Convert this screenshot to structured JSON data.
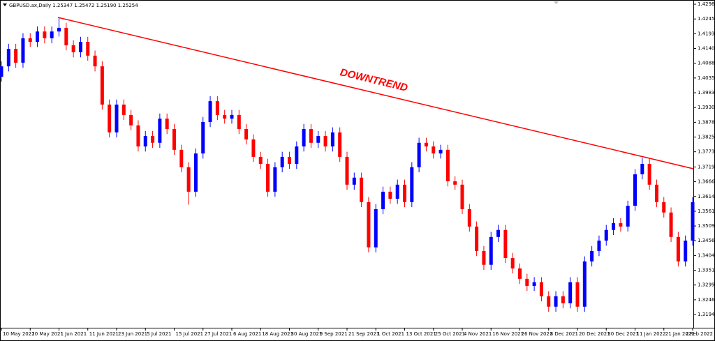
{
  "chart_data": {
    "type": "candlestick",
    "title": "GBPUSD.ax,Daily  1.25347 1.25472 1.25190 1.25254",
    "annotation": "DOWNTREND",
    "up_color": "#0000ff",
    "down_color": "#ff0000",
    "ylim": [
      1.3147,
      1.4313
    ],
    "yticks": [
      {
        "value": 1.4298,
        "label": "1.42980"
      },
      {
        "value": 1.42455,
        "label": "1.42455"
      },
      {
        "value": 1.4193,
        "label": "1.41930"
      },
      {
        "value": 1.41405,
        "label": "1.41405"
      },
      {
        "value": 1.4088,
        "label": "1.40880"
      },
      {
        "value": 1.40355,
        "label": "1.40355"
      },
      {
        "value": 1.3983,
        "label": "1.39830"
      },
      {
        "value": 1.39305,
        "label": "1.39305"
      },
      {
        "value": 1.3878,
        "label": "1.38780"
      },
      {
        "value": 1.38255,
        "label": "1.38255"
      },
      {
        "value": 1.3773,
        "label": "1.37730"
      },
      {
        "value": 1.3719,
        "label": "1.37190"
      },
      {
        "value": 1.36665,
        "label": "1.36665"
      },
      {
        "value": 1.3614,
        "label": "1.36140"
      },
      {
        "value": 1.35615,
        "label": "1.35615"
      },
      {
        "value": 1.3509,
        "label": "1.35090"
      },
      {
        "value": 1.34565,
        "label": "1.34565"
      },
      {
        "value": 1.3404,
        "label": "1.34040"
      },
      {
        "value": 1.33515,
        "label": "1.33515"
      },
      {
        "value": 1.3299,
        "label": "1.32990"
      },
      {
        "value": 1.32465,
        "label": "1.32465"
      },
      {
        "value": 1.3194,
        "label": "1.31940"
      }
    ],
    "xlim": [
      0,
      96
    ],
    "xticks": [
      {
        "value": 0,
        "label": "10 May 2021"
      },
      {
        "value": 4,
        "label": "20 May 2021"
      },
      {
        "value": 8,
        "label": "1 Jun 2021"
      },
      {
        "value": 12,
        "label": "11 Jun 2021"
      },
      {
        "value": 16,
        "label": "23 Jun 2021"
      },
      {
        "value": 20,
        "label": "5 Jul 2021"
      },
      {
        "value": 24,
        "label": "15 Jul 2021"
      },
      {
        "value": 28,
        "label": "27 Jul 2021"
      },
      {
        "value": 32,
        "label": "6 Aug 2021"
      },
      {
        "value": 36,
        "label": "18 Aug 2021"
      },
      {
        "value": 40,
        "label": "30 Aug 2021"
      },
      {
        "value": 44,
        "label": "9 Sep 2021"
      },
      {
        "value": 48,
        "label": "21 Sep 2021"
      },
      {
        "value": 52,
        "label": "1 Oct 2021"
      },
      {
        "value": 56,
        "label": "13 Oct 2021"
      },
      {
        "value": 60,
        "label": "25 Oct 2021"
      },
      {
        "value": 64,
        "label": "4 Nov 2021"
      },
      {
        "value": 68,
        "label": "16 Nov 2021"
      },
      {
        "value": 72,
        "label": "26 Nov 2021"
      },
      {
        "value": 76,
        "label": "8 Dec 2021"
      },
      {
        "value": 80,
        "label": "20 Dec 2021"
      },
      {
        "value": 84,
        "label": "30 Dec 2021"
      },
      {
        "value": 88,
        "label": "11 Jan 2022"
      },
      {
        "value": 92,
        "label": "21 Jan 2022"
      },
      {
        "value": 96,
        "label": "2 Feb 2022"
      }
    ],
    "open": [
      1.404,
      1.4077,
      1.4139,
      1.409,
      1.4177,
      1.4164,
      1.4201,
      1.4177,
      1.4201,
      1.4214,
      1.4152,
      1.4127,
      1.4164,
      1.4115,
      1.4077,
      1.3941,
      1.3842,
      1.3941,
      1.3904,
      1.3867,
      1.3792,
      1.3829,
      1.3805,
      1.3891,
      1.3854,
      1.378,
      1.3718,
      1.3631,
      1.3767,
      1.3879,
      1.3953,
      1.3904,
      1.3891,
      1.3904,
      1.3854,
      1.3817,
      1.3755,
      1.373,
      1.3631,
      1.3718,
      1.3755,
      1.373,
      1.3792,
      1.3854,
      1.3805,
      1.3829,
      1.3792,
      1.3842,
      1.3755,
      1.3656,
      1.3681,
      1.3594,
      1.3433,
      1.3569,
      1.3631,
      1.3606,
      1.3656,
      1.3594,
      1.3718,
      1.3805,
      1.3792,
      1.3767,
      1.378,
      1.3668,
      1.3656,
      1.3569,
      1.3507,
      1.342,
      1.3371,
      1.347,
      1.3495,
      1.3395,
      1.3358,
      1.3321,
      1.3296,
      1.3309,
      1.3259,
      1.3222,
      1.3259,
      1.3234,
      1.3309,
      1.3222,
      1.3383,
      1.342,
      1.3457,
      1.3495,
      1.3519,
      1.3507,
      1.3581,
      1.3693,
      1.373,
      1.3656,
      1.3594,
      1.3557,
      1.347,
      1.3383,
      1.3457
    ],
    "high": [
      1.4095,
      1.4157,
      1.4157,
      1.4195,
      1.4195,
      1.4219,
      1.4219,
      1.4219,
      1.4251,
      1.4232,
      1.417,
      1.4182,
      1.4182,
      1.4133,
      1.4095,
      1.3959,
      1.3959,
      1.3959,
      1.3922,
      1.3885,
      1.3847,
      1.3847,
      1.3909,
      1.3909,
      1.3872,
      1.3798,
      1.3736,
      1.3785,
      1.3897,
      1.3971,
      1.3971,
      1.3922,
      1.3922,
      1.3922,
      1.3872,
      1.3835,
      1.3773,
      1.3748,
      1.3736,
      1.3773,
      1.3773,
      1.381,
      1.3872,
      1.3872,
      1.3847,
      1.3847,
      1.386,
      1.386,
      1.3773,
      1.3699,
      1.3699,
      1.3612,
      1.3587,
      1.3649,
      1.3649,
      1.3674,
      1.3674,
      1.3736,
      1.3823,
      1.3823,
      1.381,
      1.3798,
      1.3798,
      1.3686,
      1.3674,
      1.3587,
      1.3525,
      1.3438,
      1.3488,
      1.3513,
      1.3513,
      1.3413,
      1.3376,
      1.3339,
      1.3327,
      1.3327,
      1.3277,
      1.3277,
      1.3277,
      1.3327,
      1.3327,
      1.3401,
      1.3438,
      1.3475,
      1.3513,
      1.3537,
      1.3537,
      1.3599,
      1.3711,
      1.3751,
      1.3748,
      1.3674,
      1.3612,
      1.3575,
      1.3488,
      1.3475,
      1.3612
    ],
    "low": [
      1.4022,
      1.4059,
      1.4072,
      1.4072,
      1.4146,
      1.4146,
      1.4159,
      1.4159,
      1.4183,
      1.4134,
      1.4109,
      1.4109,
      1.4097,
      1.4059,
      1.3923,
      1.3824,
      1.3824,
      1.3886,
      1.3849,
      1.3774,
      1.3774,
      1.3787,
      1.3787,
      1.3836,
      1.3762,
      1.37,
      1.3585,
      1.3613,
      1.3749,
      1.3861,
      1.3886,
      1.3873,
      1.3873,
      1.3836,
      1.3799,
      1.3737,
      1.3712,
      1.3613,
      1.3613,
      1.37,
      1.3712,
      1.3712,
      1.3774,
      1.3787,
      1.3787,
      1.3774,
      1.3774,
      1.3737,
      1.3638,
      1.3638,
      1.3576,
      1.3415,
      1.3415,
      1.3551,
      1.3588,
      1.3588,
      1.3576,
      1.3576,
      1.37,
      1.3774,
      1.3749,
      1.3749,
      1.365,
      1.3638,
      1.3551,
      1.3489,
      1.3402,
      1.3353,
      1.3353,
      1.3452,
      1.3377,
      1.334,
      1.3303,
      1.3278,
      1.3278,
      1.3241,
      1.3204,
      1.3204,
      1.3216,
      1.3216,
      1.3204,
      1.3204,
      1.3365,
      1.3402,
      1.3439,
      1.3477,
      1.3489,
      1.3489,
      1.3563,
      1.3675,
      1.3638,
      1.3576,
      1.3539,
      1.3452,
      1.3365,
      1.3365,
      1.3439
    ],
    "close": [
      1.4077,
      1.4139,
      1.409,
      1.4177,
      1.4164,
      1.4201,
      1.4177,
      1.4201,
      1.4214,
      1.4152,
      1.4127,
      1.4164,
      1.4115,
      1.4077,
      1.3941,
      1.3842,
      1.3941,
      1.3904,
      1.3867,
      1.3792,
      1.3829,
      1.3805,
      1.3891,
      1.3854,
      1.378,
      1.3718,
      1.3631,
      1.3767,
      1.3879,
      1.3953,
      1.3904,
      1.3891,
      1.3904,
      1.3854,
      1.3817,
      1.3755,
      1.373,
      1.3631,
      1.3718,
      1.3755,
      1.373,
      1.3792,
      1.3854,
      1.3805,
      1.3829,
      1.3792,
      1.3842,
      1.3755,
      1.3656,
      1.3681,
      1.3594,
      1.3433,
      1.3569,
      1.3631,
      1.3606,
      1.3656,
      1.3594,
      1.3718,
      1.3805,
      1.3792,
      1.3767,
      1.378,
      1.3668,
      1.3656,
      1.3569,
      1.3507,
      1.342,
      1.3371,
      1.347,
      1.3495,
      1.3395,
      1.3358,
      1.3321,
      1.3296,
      1.3309,
      1.3259,
      1.3222,
      1.3259,
      1.3234,
      1.3309,
      1.3222,
      1.3383,
      1.342,
      1.3457,
      1.3495,
      1.3519,
      1.3507,
      1.3581,
      1.3693,
      1.373,
      1.3656,
      1.3594,
      1.3557,
      1.347,
      1.3383,
      1.3457,
      1.3594
    ],
    "trendline": {
      "x": [
        7.85,
        96.05
      ],
      "y": [
        1.4251,
        1.3713
      ],
      "color": "#ff0000"
    }
  }
}
